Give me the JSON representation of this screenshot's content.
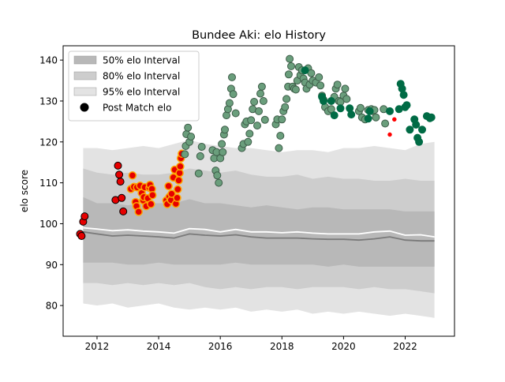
{
  "chart_data": {
    "type": "scatter",
    "title": "Bundee Aki: elo History",
    "xlabel": "",
    "ylabel": "elo score",
    "xlim": [
      2010.9,
      2023.6
    ],
    "ylim": [
      72.5,
      143.5
    ],
    "xticks": [
      2012,
      2014,
      2016,
      2018,
      2020,
      2022
    ],
    "yticks": [
      80,
      90,
      100,
      110,
      120,
      130,
      140
    ],
    "grid": false,
    "legend_position": "top-left",
    "legend": [
      {
        "label": "50% elo Interval",
        "kind": "band50"
      },
      {
        "label": "80% elo Interval",
        "kind": "band80"
      },
      {
        "label": "95% elo Interval",
        "kind": "band95"
      },
      {
        "label": "Post Match elo",
        "kind": "marker"
      }
    ],
    "colors": {
      "band95": "#e3e3e3",
      "band80": "#cdcdcd",
      "band50": "#b8b8b8",
      "mean_line": "#ffffff",
      "median_line": "#7a7a7a",
      "early": "#e60000",
      "early_edge": "#000000",
      "orange_edge": "#ffa500",
      "green_light": "#6a9e7c",
      "green_dark": "#006b45",
      "red_small": "#ff0000"
    },
    "bands": {
      "x": [
        2011.55,
        2012.0,
        2012.5,
        2013.0,
        2013.5,
        2014.0,
        2014.5,
        2015.0,
        2015.5,
        2016.0,
        2016.5,
        2017.0,
        2017.5,
        2018.0,
        2018.5,
        2019.0,
        2019.5,
        2020.0,
        2020.5,
        2021.0,
        2021.5,
        2022.0,
        2022.5,
        2022.95
      ],
      "band95_upper": [
        118.5,
        118.5,
        118.0,
        118.5,
        119.0,
        118.5,
        119.5,
        120.5,
        119.5,
        119.0,
        118.5,
        118.5,
        118.0,
        117.5,
        118.0,
        118.0,
        117.5,
        118.5,
        118.5,
        119.0,
        118.5,
        118.0,
        119.5,
        120.0
      ],
      "band95_lower": [
        80.5,
        80.0,
        80.5,
        79.5,
        80.0,
        80.5,
        79.5,
        79.0,
        79.5,
        79.0,
        79.5,
        78.5,
        79.0,
        78.5,
        79.0,
        78.0,
        78.5,
        78.0,
        78.5,
        78.0,
        77.5,
        78.0,
        77.5,
        77.0
      ],
      "band80_upper": [
        113.5,
        112.5,
        112.0,
        112.5,
        112.0,
        112.0,
        112.5,
        113.5,
        113.0,
        112.5,
        113.0,
        112.0,
        111.5,
        111.5,
        112.0,
        111.0,
        111.5,
        111.0,
        111.0,
        110.5,
        110.5,
        111.0,
        110.5,
        110.5
      ],
      "band80_lower": [
        85.5,
        85.5,
        85.0,
        85.5,
        85.0,
        85.5,
        85.0,
        85.5,
        84.5,
        84.0,
        84.5,
        84.0,
        84.5,
        84.5,
        84.0,
        84.5,
        84.5,
        84.5,
        84.0,
        84.5,
        84.0,
        84.0,
        83.5,
        83.0
      ],
      "band50_upper": [
        106.5,
        105.0,
        105.0,
        104.5,
        105.0,
        105.0,
        105.0,
        106.0,
        105.0,
        105.0,
        104.5,
        104.0,
        104.5,
        104.0,
        103.5,
        104.0,
        104.0,
        103.5,
        103.5,
        103.5,
        103.5,
        103.0,
        103.0,
        103.0
      ],
      "band50_lower": [
        90.5,
        90.5,
        90.5,
        90.0,
        90.0,
        90.5,
        90.0,
        90.0,
        90.0,
        90.0,
        90.5,
        90.0,
        90.0,
        90.0,
        90.0,
        90.0,
        89.5,
        90.0,
        89.5,
        89.5,
        89.5,
        89.5,
        89.5,
        89.5
      ],
      "mean": [
        99.0,
        98.7,
        98.3,
        98.5,
        98.2,
        98.0,
        97.7,
        98.8,
        98.6,
        98.0,
        98.6,
        98.0,
        98.0,
        97.8,
        98.0,
        97.7,
        97.5,
        97.5,
        97.5,
        98.0,
        98.2,
        97.2,
        97.3,
        96.8
      ],
      "median": [
        98.0,
        97.5,
        97.0,
        97.2,
        97.0,
        96.8,
        96.5,
        97.5,
        97.2,
        97.0,
        97.3,
        96.8,
        96.5,
        96.5,
        96.5,
        96.3,
        96.2,
        96.2,
        96.0,
        96.3,
        96.8,
        96.0,
        95.8,
        95.8
      ]
    },
    "series": [
      {
        "group": "early",
        "style": "red-black",
        "x": [
          2011.45,
          2011.5,
          2011.55,
          2011.6,
          2012.6,
          2012.68,
          2012.72,
          2012.76,
          2012.8,
          2012.85
        ],
        "y": [
          97.5,
          97.0,
          100.5,
          101.8,
          105.8,
          114.2,
          112.0,
          110.3,
          106.3,
          103.0
        ]
      },
      {
        "group": "2013",
        "style": "red-orange",
        "x": [
          2013.1,
          2013.15,
          2013.2,
          2013.25,
          2013.28,
          2013.3,
          2013.35,
          2013.4,
          2013.45,
          2013.5,
          2013.52,
          2013.55,
          2013.6,
          2013.65,
          2013.7,
          2013.72,
          2013.75,
          2013.78,
          2013.8
        ],
        "y": [
          108.5,
          111.8,
          109.0,
          105.3,
          104.3,
          108.9,
          102.9,
          109.3,
          107.5,
          105.7,
          106.5,
          108.9,
          104.3,
          106.2,
          108.8,
          109.5,
          104.8,
          108.5,
          107.0
        ]
      },
      {
        "group": "2014",
        "style": "red-orange",
        "x": [
          2014.25,
          2014.28,
          2014.32,
          2014.35,
          2014.4,
          2014.42,
          2014.48,
          2014.52,
          2014.56,
          2014.6,
          2014.62,
          2014.65,
          2014.68,
          2014.7,
          2014.72,
          2014.75
        ],
        "y": [
          105.7,
          104.8,
          109.2,
          106.6,
          105.8,
          107.3,
          111.3,
          113.2,
          104.9,
          106.3,
          108.4,
          110.6,
          112.4,
          114.0,
          116.0,
          117.1
        ]
      },
      {
        "group": "2015-2018",
        "style": "green-light",
        "x": [
          2014.85,
          2014.88,
          2014.9,
          2014.95,
          2015.0,
          2015.05,
          2015.3,
          2015.35,
          2015.4,
          2015.75,
          2015.8,
          2015.85,
          2015.88,
          2015.9,
          2015.95,
          2016.0,
          2016.05,
          2016.08,
          2016.12,
          2016.15,
          2016.2,
          2016.25,
          2016.3,
          2016.35,
          2016.38,
          2016.42,
          2016.5,
          2016.7,
          2016.75,
          2016.8,
          2016.85,
          2016.9,
          2016.95,
          2017.0,
          2017.05,
          2017.1,
          2017.2,
          2017.25,
          2017.3,
          2017.35,
          2017.4,
          2017.45,
          2017.8,
          2017.85,
          2017.9,
          2017.95,
          2018.0,
          2018.05,
          2018.1,
          2018.15,
          2018.2,
          2018.22,
          2018.25,
          2018.3,
          2018.35,
          2018.4,
          2018.45,
          2018.5,
          2018.55,
          2018.6
        ],
        "y": [
          117.0,
          119.0,
          121.9,
          123.5,
          120.0,
          121.3,
          112.3,
          116.5,
          118.8,
          118.0,
          116.0,
          113.0,
          117.5,
          111.8,
          110.0,
          116.0,
          119.5,
          117.5,
          121.8,
          123.0,
          126.5,
          128.0,
          129.5,
          133.0,
          135.8,
          131.7,
          127.0,
          118.5,
          119.5,
          124.3,
          125.0,
          120.0,
          122.0,
          125.3,
          128.0,
          129.8,
          124.0,
          127.5,
          131.8,
          133.5,
          130.0,
          125.4,
          124.3,
          125.5,
          118.5,
          121.5,
          125.5,
          127.5,
          128.5,
          130.5,
          133.5,
          136.5,
          140.3,
          138.5,
          133.5,
          133.0,
          132.8,
          135.0,
          138.3,
          136.3
        ]
      },
      {
        "group": "2018-2021",
        "style": "green-light",
        "x": [
          2018.65,
          2018.7,
          2018.75,
          2018.8,
          2018.85,
          2018.9,
          2018.95,
          2019.0,
          2019.1,
          2019.2,
          2019.25,
          2019.3,
          2019.35,
          2019.4,
          2019.5,
          2019.6,
          2019.7,
          2019.75,
          2019.8,
          2019.85,
          2019.9,
          2020.0,
          2020.05,
          2020.1,
          2020.5,
          2020.55,
          2020.6,
          2020.7,
          2020.8,
          2020.9,
          2020.95,
          2021.0,
          2021.05,
          2021.3,
          2021.35
        ],
        "y": [
          137.5,
          135.5,
          134.5,
          133.0,
          138.0,
          134.0,
          136.8,
          135.0,
          134.5,
          135.8,
          133.8,
          131.3,
          130.3,
          128.5,
          127.5,
          128.0,
          131.0,
          133.0,
          134.0,
          130.0,
          129.8,
          131.3,
          133.0,
          130.5,
          127.5,
          128.3,
          126.0,
          125.5,
          127.8,
          128.0,
          127.5,
          127.8,
          126.0,
          128.0,
          124.5
        ]
      },
      {
        "group": "dark",
        "style": "green-dark",
        "x": [
          2018.75,
          2019.3,
          2019.35,
          2019.6,
          2019.7,
          2019.9,
          2020.2,
          2020.25,
          2020.8,
          2020.85,
          2021.5,
          2021.8,
          2021.85,
          2021.9,
          2021.95,
          2022.0,
          2022.05,
          2022.15,
          2022.3,
          2022.35,
          2022.4,
          2022.45,
          2022.55,
          2022.7,
          2022.8,
          2022.85
        ],
        "y": [
          137.5,
          131.0,
          130.0,
          130.0,
          126.5,
          128.2,
          128.2,
          126.7,
          125.7,
          127.5,
          127.5,
          128.0,
          134.2,
          133.0,
          131.5,
          128.5,
          129.0,
          123.0,
          125.5,
          124.2,
          121.0,
          120.0,
          123.0,
          126.3,
          125.8,
          126.0
        ]
      },
      {
        "group": "small-red",
        "style": "red-small",
        "x": [
          2021.5,
          2021.65
        ],
        "y": [
          121.8,
          125.5
        ]
      }
    ]
  }
}
